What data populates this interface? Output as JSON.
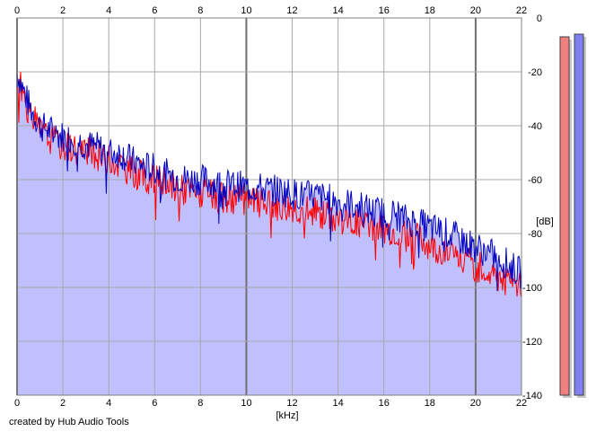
{
  "credit": "created by Hub Audio Tools",
  "chart_data": {
    "type": "area",
    "xlabel": "[kHz]",
    "ylabel": "[dB]",
    "xlim": [
      0,
      22
    ],
    "ylim": [
      -140,
      0
    ],
    "x_ticks": [
      0,
      2,
      4,
      6,
      8,
      10,
      12,
      14,
      16,
      18,
      20,
      22
    ],
    "y_ticks": [
      0,
      -20,
      -40,
      -60,
      -80,
      -100,
      -120,
      -140
    ],
    "grid": true,
    "series": [
      {
        "color": "#0000c0",
        "fill": "#c0c0ff",
        "x": [
          0,
          0.5,
          1,
          1.5,
          2,
          2.5,
          3,
          3.5,
          4,
          4.5,
          5,
          5.5,
          6,
          6.5,
          7,
          7.5,
          8,
          8.5,
          9,
          9.5,
          10,
          10.5,
          11,
          11.5,
          12,
          12.5,
          13,
          13.5,
          14,
          14.5,
          15,
          15.5,
          16,
          16.5,
          17,
          17.5,
          18,
          18.5,
          19,
          19.5,
          20,
          20.5,
          21,
          21.5,
          22
        ],
        "values": [
          -20,
          -32,
          -40,
          -42,
          -44,
          -45,
          -47,
          -48,
          -50,
          -50,
          -53,
          -55,
          -56,
          -58,
          -59,
          -60,
          -60,
          -61,
          -62,
          -62,
          -63,
          -63,
          -64,
          -64,
          -65,
          -66,
          -66,
          -67,
          -68,
          -69,
          -70,
          -72,
          -72,
          -73,
          -75,
          -76,
          -78,
          -79,
          -81,
          -83,
          -85,
          -87,
          -89,
          -92,
          -95
        ]
      },
      {
        "color": "#ff0000",
        "x": [
          0,
          0.5,
          1,
          1.5,
          2,
          2.5,
          3,
          3.5,
          4,
          4.5,
          5,
          5.5,
          6,
          6.5,
          7,
          7.5,
          8,
          8.5,
          9,
          9.5,
          10,
          10.5,
          11,
          11.5,
          12,
          12.5,
          13,
          13.5,
          14,
          14.5,
          15,
          15.5,
          16,
          16.5,
          17,
          17.5,
          18,
          18.5,
          19,
          19.5,
          20,
          20.5,
          21,
          21.5,
          22
        ],
        "values": [
          -22,
          -34,
          -42,
          -45,
          -47,
          -48,
          -50,
          -51,
          -53,
          -54,
          -57,
          -59,
          -60,
          -62,
          -63,
          -64,
          -65,
          -66,
          -67,
          -67,
          -68,
          -68,
          -69,
          -70,
          -70,
          -71,
          -72,
          -73,
          -74,
          -75,
          -76,
          -77,
          -78,
          -79,
          -81,
          -82,
          -84,
          -86,
          -88,
          -90,
          -92,
          -94,
          -96,
          -98,
          -100
        ]
      }
    ],
    "meters": [
      {
        "color": "#f08080",
        "value": -7
      },
      {
        "color": "#8080f0",
        "value": -6
      }
    ]
  }
}
